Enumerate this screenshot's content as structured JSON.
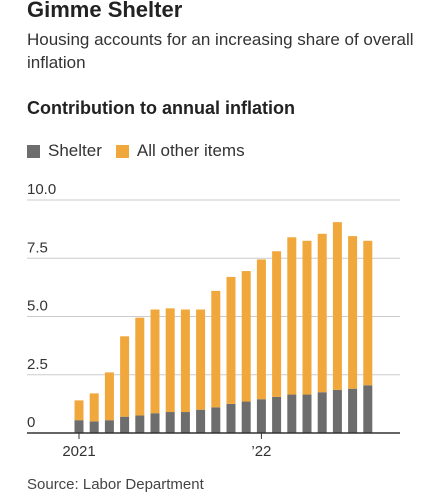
{
  "header": {
    "headline": "Gimme Shelter",
    "subhead": "Housing accounts for an increasing share of overall inflation"
  },
  "chart_title": "Contribution to annual inflation",
  "legend": [
    {
      "label": "Shelter",
      "color": "#6d6d6d"
    },
    {
      "label": "All other items",
      "color": "#f0a83c"
    }
  ],
  "source": "Source: Labor Department",
  "chart_data": {
    "type": "bar",
    "stacked": true,
    "title": "Contribution to annual inflation",
    "xlabel": "",
    "ylabel": "",
    "ylim": [
      0,
      10
    ],
    "yticks": [
      "0",
      "2.5",
      "5.0",
      "7.5",
      "10.0"
    ],
    "ytick_values": [
      0,
      2.5,
      5,
      7.5,
      10
    ],
    "xtick_labels": [
      {
        "label": "2021",
        "index": 0
      },
      {
        "label": "’22",
        "index": 12
      }
    ],
    "categories": [
      "Jan 2021",
      "Feb 2021",
      "Mar 2021",
      "Apr 2021",
      "May 2021",
      "Jun 2021",
      "Jul 2021",
      "Aug 2021",
      "Sep 2021",
      "Oct 2021",
      "Nov 2021",
      "Dec 2021",
      "Jan 2022",
      "Feb 2022",
      "Mar 2022",
      "Apr 2022",
      "May 2022",
      "Jun 2022",
      "Jul 2022",
      "Aug 2022",
      "Sep 2022"
    ],
    "series": [
      {
        "name": "Shelter",
        "color": "#6d6d6d",
        "values": [
          0.55,
          0.5,
          0.55,
          0.7,
          0.75,
          0.85,
          0.9,
          0.9,
          1.0,
          1.1,
          1.25,
          1.35,
          1.45,
          1.55,
          1.65,
          1.65,
          1.75,
          1.85,
          1.9,
          2.05,
          null
        ]
      },
      {
        "name": "All other items",
        "color": "#f0a83c",
        "values": [
          0.85,
          1.2,
          2.05,
          3.45,
          4.2,
          4.45,
          4.45,
          4.4,
          4.3,
          5.0,
          5.45,
          5.6,
          6.0,
          6.25,
          6.75,
          6.6,
          6.8,
          7.2,
          6.55,
          6.2,
          null
        ]
      }
    ],
    "grid": true,
    "legend_position": "top-left",
    "colors": {
      "baseline": "#333333",
      "grid": "#cccccc",
      "tick_text": "#333333"
    }
  }
}
